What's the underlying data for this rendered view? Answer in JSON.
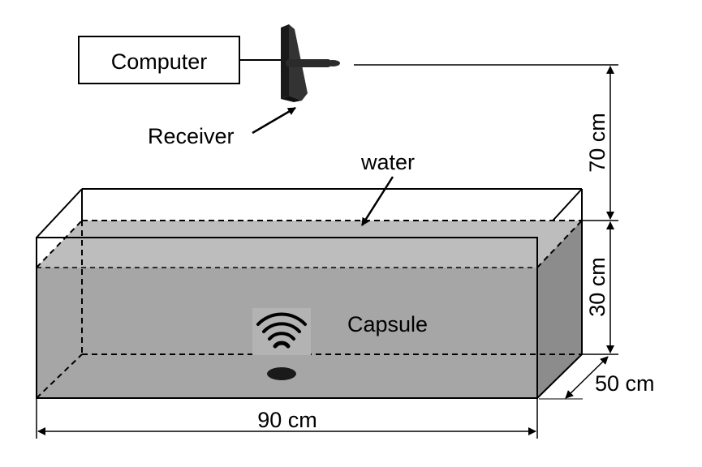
{
  "labels": {
    "computer": "Computer",
    "receiver": "Receiver",
    "water": "water",
    "capsule": "Capsule",
    "height_above": "70 cm",
    "water_depth": "30 cm",
    "width": "50 cm",
    "length": "90 cm"
  },
  "colors": {
    "water_front": "#a6a6a6",
    "water_top": "#bdbdbd",
    "water_side": "#8c8c8c",
    "capsule_panel": "#b3b3b3",
    "receiver": "#2b2b2b",
    "outline": "#000000"
  },
  "icons": {
    "capsule": "wifi-signal-icon",
    "receiver": "antenna-icon"
  }
}
